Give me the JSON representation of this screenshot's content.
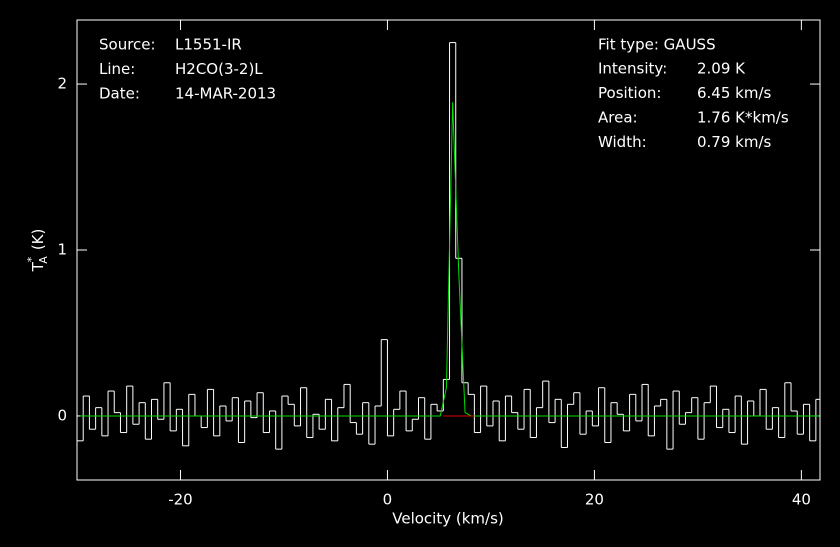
{
  "chart_data": {
    "type": "spectrum",
    "xlabel": "Velocity (km/s)",
    "ylabel": {
      "base": "T",
      "sup": "*",
      "sub": "A",
      "unit": "(K)"
    },
    "xlim": [
      -30,
      41.8
    ],
    "ylim": [
      -0.386,
      2.386
    ],
    "xticks": [
      -20,
      0,
      20,
      40
    ],
    "yticks": [
      0,
      1,
      2
    ],
    "header": [
      {
        "label": "Source:",
        "value": "L1551-IR"
      },
      {
        "label": "Line:",
        "value": "H2CO(3-2)L"
      },
      {
        "label": "Date:",
        "value": "14-MAR-2013"
      }
    ],
    "fit_type": "Fit type: GAUSS",
    "fit_info": [
      {
        "label": "Intensity:",
        "value": "2.09 K"
      },
      {
        "label": "Position:",
        "value": "6.45 km/s"
      },
      {
        "label": "Area:",
        "value": "1.76 K*km/s"
      },
      {
        "label": "Width:",
        "value": "0.79 km/s"
      }
    ],
    "x": [
      -29.7,
      -29.1,
      -28.5,
      -27.9,
      -27.3,
      -26.7,
      -26.1,
      -25.5,
      -24.9,
      -24.3,
      -23.7,
      -23.1,
      -22.5,
      -21.9,
      -21.3,
      -20.7,
      -20.1,
      -19.5,
      -18.9,
      -18.3,
      -17.7,
      -17.1,
      -16.5,
      -15.9,
      -15.3,
      -14.7,
      -14.1,
      -13.5,
      -12.9,
      -12.3,
      -11.7,
      -11.1,
      -10.5,
      -9.9,
      -9.3,
      -8.7,
      -8.1,
      -7.5,
      -6.9,
      -6.3,
      -5.7,
      -5.1,
      -4.5,
      -3.9,
      -3.3,
      -2.7,
      -2.1,
      -1.5,
      -0.9,
      -0.3,
      0.3,
      0.9,
      1.5,
      2.1,
      2.7,
      3.3,
      3.9,
      4.5,
      5.1,
      5.7,
      6.3,
      6.9,
      7.5,
      8.1,
      8.7,
      9.3,
      9.9,
      10.5,
      11.1,
      11.7,
      12.3,
      12.9,
      13.5,
      14.1,
      14.7,
      15.3,
      15.9,
      16.5,
      17.1,
      17.7,
      18.3,
      18.9,
      19.5,
      20.1,
      20.7,
      21.3,
      21.9,
      22.5,
      23.1,
      23.7,
      24.3,
      24.9,
      25.5,
      26.1,
      26.7,
      27.3,
      27.9,
      28.5,
      29.1,
      29.7,
      30.3,
      30.9,
      31.5,
      32.1,
      32.7,
      33.3,
      33.9,
      34.5,
      35.1,
      35.7,
      36.3,
      36.9,
      37.5,
      38.1,
      38.7,
      39.3,
      39.9,
      40.5,
      41.1,
      41.7
    ],
    "series": [
      {
        "name": "spectrum",
        "color": "#ffffff",
        "values": [
          -0.15,
          0.12,
          -0.08,
          0.05,
          -0.12,
          0.15,
          0.02,
          -0.1,
          0.18,
          -0.05,
          0.08,
          -0.14,
          0.1,
          -0.02,
          0.2,
          -0.09,
          0.04,
          -0.18,
          0.13,
          0.0,
          -0.07,
          0.16,
          -0.12,
          0.06,
          -0.03,
          0.11,
          -0.16,
          0.09,
          -0.01,
          0.14,
          -0.1,
          0.03,
          -0.2,
          0.12,
          0.07,
          -0.06,
          0.17,
          -0.13,
          0.01,
          -0.08,
          0.1,
          -0.15,
          0.05,
          0.19,
          -0.04,
          -0.11,
          0.08,
          -0.17,
          0.06,
          0.46,
          -0.12,
          0.04,
          0.15,
          -0.09,
          -0.02,
          0.11,
          -0.14,
          0.07,
          0.03,
          0.22,
          2.25,
          0.95,
          0.2,
          0.13,
          -0.1,
          0.18,
          -0.06,
          0.09,
          -0.15,
          0.12,
          0.02,
          -0.08,
          0.16,
          -0.13,
          0.05,
          0.21,
          -0.04,
          0.1,
          -0.19,
          0.07,
          0.14,
          -0.11,
          0.03,
          -0.06,
          0.17,
          -0.16,
          0.08,
          0.01,
          -0.09,
          0.13,
          -0.03,
          0.19,
          -0.12,
          0.06,
          0.1,
          -0.2,
          0.15,
          -0.05,
          0.02,
          0.11,
          -0.14,
          0.08,
          0.18,
          -0.07,
          0.04,
          -0.1,
          0.12,
          -0.17,
          0.09,
          0.0,
          0.16,
          -0.08,
          0.05,
          -0.13,
          0.2,
          0.03,
          -0.11,
          0.07,
          -0.15,
          0.1
        ]
      },
      {
        "name": "fit",
        "color": "#00dd00",
        "values": [
          0,
          0,
          0,
          0,
          0,
          0,
          0,
          0,
          0,
          0,
          0,
          0,
          0,
          0,
          0,
          0,
          0,
          0,
          0,
          0,
          0,
          0,
          0,
          0,
          0,
          0,
          0,
          0,
          0,
          0,
          0,
          0,
          0,
          0,
          0,
          0,
          0,
          0,
          0,
          0,
          0,
          0,
          0,
          0,
          0,
          0,
          0,
          0,
          0,
          0,
          0,
          0,
          0,
          0,
          0,
          0,
          0,
          0,
          0,
          0.17,
          1.89,
          0.85,
          0.02,
          0,
          0,
          0,
          0,
          0,
          0,
          0,
          0,
          0,
          0,
          0,
          0,
          0,
          0,
          0,
          0,
          0,
          0,
          0,
          0,
          0,
          0,
          0,
          0,
          0,
          0,
          0,
          0,
          0,
          0,
          0,
          0,
          0,
          0,
          0,
          0,
          0,
          0,
          0,
          0,
          0,
          0,
          0,
          0,
          0,
          0,
          0,
          0,
          0,
          0,
          0,
          0,
          0,
          0,
          0,
          0,
          0
        ]
      }
    ],
    "baseline_window": {
      "x": [
        5.4,
        8.4
      ],
      "color": "#dd0000"
    }
  }
}
